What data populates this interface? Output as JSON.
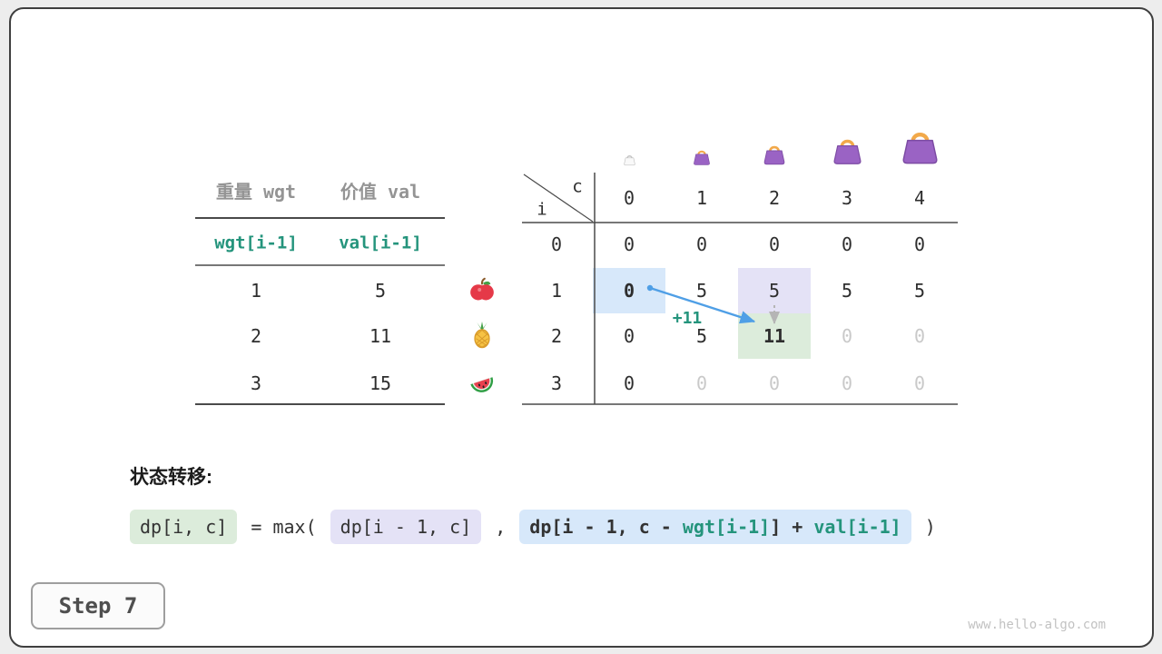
{
  "items_table": {
    "headers": [
      {
        "label": "重量 wgt"
      },
      {
        "label": "价值 val"
      }
    ],
    "symbol_row": {
      "wgt": "wgt[i-1]",
      "val": "val[i-1]"
    },
    "rows": [
      {
        "wgt": "1",
        "val": "5",
        "icon": "apple"
      },
      {
        "wgt": "2",
        "val": "11",
        "icon": "pineapple"
      },
      {
        "wgt": "3",
        "val": "15",
        "icon": "watermelon"
      }
    ]
  },
  "dp_table": {
    "corner": {
      "col": "c",
      "row": "i"
    },
    "col_headers": [
      "0",
      "1",
      "2",
      "3",
      "4"
    ],
    "bags": [
      {
        "size": 15,
        "variant": "empty"
      },
      {
        "size": 22,
        "variant": "purple"
      },
      {
        "size": 28,
        "variant": "purple"
      },
      {
        "size": 37,
        "variant": "purple"
      },
      {
        "size": 47,
        "variant": "purple"
      }
    ],
    "rows": [
      {
        "label": "0",
        "cells": [
          {
            "v": "0"
          },
          {
            "v": "0"
          },
          {
            "v": "0"
          },
          {
            "v": "0"
          },
          {
            "v": "0"
          }
        ]
      },
      {
        "label": "1",
        "cells": [
          {
            "v": "0",
            "bg": "blue",
            "bold": true
          },
          {
            "v": "5"
          },
          {
            "v": "5",
            "bg": "lavender"
          },
          {
            "v": "5"
          },
          {
            "v": "5"
          }
        ]
      },
      {
        "label": "2",
        "cells": [
          {
            "v": "0"
          },
          {
            "v": "5"
          },
          {
            "v": "11",
            "bg": "green",
            "bold": true
          },
          {
            "v": "0",
            "muted": true
          },
          {
            "v": "0",
            "muted": true
          }
        ]
      },
      {
        "label": "3",
        "cells": [
          {
            "v": "0"
          },
          {
            "v": "0",
            "muted": true
          },
          {
            "v": "0",
            "muted": true
          },
          {
            "v": "0",
            "muted": true
          },
          {
            "v": "0",
            "muted": true
          }
        ]
      }
    ]
  },
  "annotations": {
    "transfer_label": "+11"
  },
  "formula": {
    "caption": "状态转移:",
    "tokens": [
      {
        "text": "dp[i, c]",
        "box": "green"
      },
      {
        "text": " = max( ",
        "box": null
      },
      {
        "text": "dp[i - 1, c]",
        "box": "lavender"
      },
      {
        "text": " , ",
        "box": null
      },
      {
        "box": "blue",
        "bold": true,
        "segments": [
          {
            "text": "dp[i - 1, c - ",
            "color": "dark"
          },
          {
            "text": "wgt[i-1]",
            "color": "green"
          },
          {
            "text": "] + ",
            "color": "dark"
          },
          {
            "text": "val[i-1]",
            "color": "green"
          }
        ]
      },
      {
        "text": " )",
        "box": null
      }
    ]
  },
  "step_badge": "Step 7",
  "watermark": "www.hello-algo.com",
  "colors": {
    "accent_green": "#24947c",
    "cell_blue": "#d7e8fa",
    "cell_lavender": "#e4e2f6",
    "cell_green": "#dcecdb",
    "arrow_blue": "#4f9fe6",
    "muted": "#c9c9c9"
  }
}
